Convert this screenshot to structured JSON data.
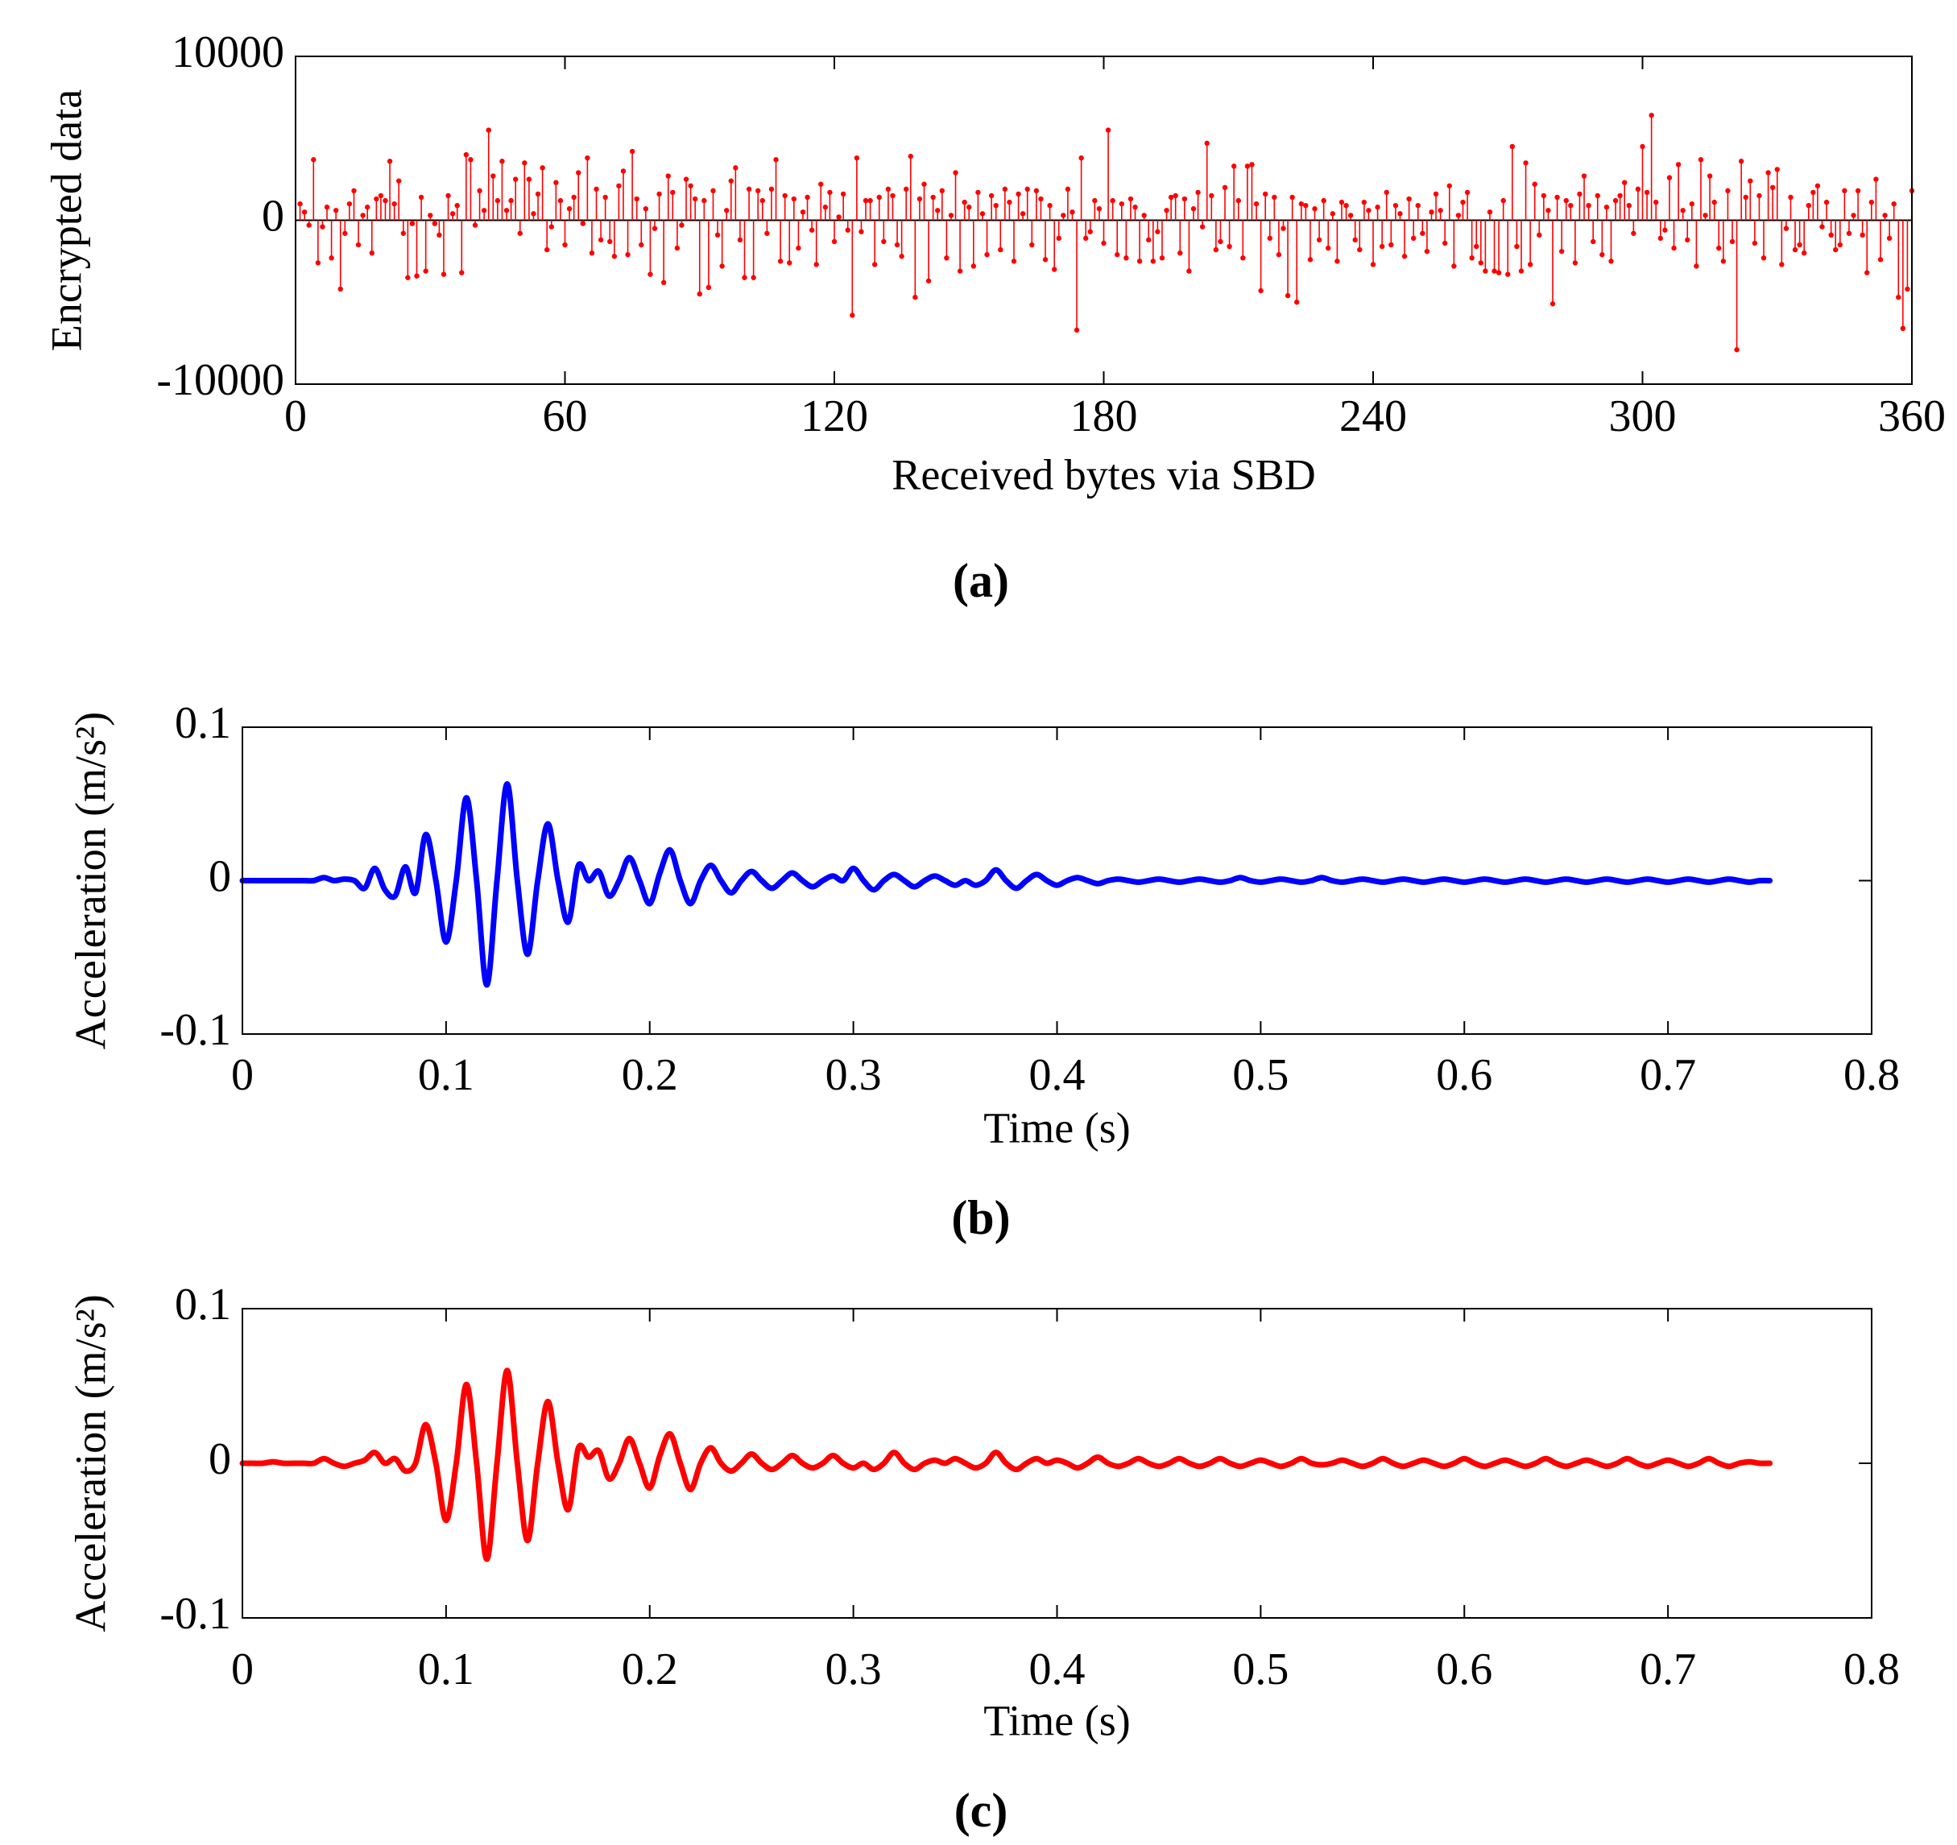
{
  "chart_data": [
    {
      "type": "stem",
      "panel_label": "(a)",
      "x_label": "Received bytes via SBD",
      "y_label": "Encrypted data",
      "color": "#ff0000",
      "xlim": [
        0,
        360
      ],
      "xticks": [
        0,
        60,
        120,
        180,
        240,
        300,
        360
      ],
      "ylim": [
        -10000,
        10000
      ],
      "yticks": [
        -10000,
        0,
        10000
      ],
      "x": [
        1,
        2,
        3,
        4,
        5,
        6,
        7,
        8,
        9,
        10,
        11,
        12,
        13,
        14,
        15,
        16,
        17,
        18,
        19,
        20,
        21,
        22,
        23,
        24,
        25,
        26,
        27,
        28,
        29,
        30,
        31,
        32,
        33,
        34,
        35,
        36,
        37,
        38,
        39,
        40,
        41,
        42,
        43,
        44,
        45,
        46,
        47,
        48,
        49,
        50,
        51,
        52,
        53,
        54,
        55,
        56,
        57,
        58,
        59,
        60,
        61,
        62,
        63,
        64,
        65,
        66,
        67,
        68,
        69,
        70,
        71,
        72,
        73,
        74,
        75,
        76,
        77,
        78,
        79,
        80,
        81,
        82,
        83,
        84,
        85,
        86,
        87,
        88,
        89,
        90,
        91,
        92,
        93,
        94,
        95,
        96,
        97,
        98,
        99,
        100,
        101,
        102,
        103,
        104,
        105,
        106,
        107,
        108,
        109,
        110,
        111,
        112,
        113,
        114,
        115,
        116,
        117,
        118,
        119,
        120,
        121,
        122,
        123,
        124,
        125,
        126,
        127,
        128,
        129,
        130,
        131,
        132,
        133,
        134,
        135,
        136,
        137,
        138,
        139,
        140,
        141,
        142,
        143,
        144,
        145,
        146,
        147,
        148,
        149,
        150,
        151,
        152,
        153,
        154,
        155,
        156,
        157,
        158,
        159,
        160,
        161,
        162,
        163,
        164,
        165,
        166,
        167,
        168,
        169,
        170,
        171,
        172,
        173,
        174,
        175,
        176,
        177,
        178,
        179,
        180,
        181,
        182,
        183,
        184,
        185,
        186,
        187,
        188,
        189,
        190,
        191,
        192,
        193,
        194,
        195,
        196,
        197,
        198,
        199,
        200,
        201,
        202,
        203,
        204,
        205,
        206,
        207,
        208,
        209,
        210,
        211,
        212,
        213,
        214,
        215,
        216,
        217,
        218,
        219,
        220,
        221,
        222,
        223,
        224,
        225,
        226,
        227,
        228,
        229,
        230,
        231,
        232,
        233,
        234,
        235,
        236,
        237,
        238,
        239,
        240,
        241,
        242,
        243,
        244,
        245,
        246,
        247,
        248,
        249,
        250,
        251,
        252,
        253,
        254,
        255,
        256,
        257,
        258,
        259,
        260,
        261,
        262,
        263,
        264,
        265,
        266,
        267,
        268,
        269,
        270,
        271,
        272,
        273,
        274,
        275,
        276,
        277,
        278,
        279,
        280,
        281,
        282,
        283,
        284,
        285,
        286,
        287,
        288,
        289,
        290,
        291,
        292,
        293,
        294,
        295,
        296,
        297,
        298,
        299,
        300,
        301,
        302,
        303,
        304,
        305,
        306,
        307,
        308,
        309,
        310,
        311,
        312,
        313,
        314,
        315,
        316,
        317,
        318,
        319,
        320,
        321,
        322,
        323,
        324,
        325,
        326,
        327,
        328,
        329,
        330,
        331,
        332,
        333,
        334,
        335,
        336,
        337,
        338,
        339,
        340,
        341,
        342,
        343,
        344,
        345,
        346,
        347,
        348,
        349,
        350,
        351,
        352,
        353,
        354,
        355,
        356,
        357,
        358,
        359,
        360
      ],
      "values": [
        1000,
        500,
        -300,
        3700,
        -2600,
        -400,
        800,
        -2300,
        600,
        -4200,
        -800,
        1000,
        1800,
        -1500,
        300,
        800,
        -2000,
        1300,
        1500,
        1200,
        3600,
        1000,
        2400,
        -800,
        -3500,
        -200,
        -3400,
        1400,
        -3100,
        300,
        -200,
        -900,
        -3300,
        1500,
        400,
        900,
        -3200,
        4000,
        3700,
        -300,
        1800,
        600,
        5500,
        2700,
        1200,
        3600,
        600,
        1200,
        2500,
        -800,
        3500,
        2500,
        400,
        1600,
        3200,
        -1800,
        -400,
        2300,
        1200,
        -1500,
        700,
        1400,
        2900,
        -200,
        3800,
        -2000,
        1900,
        -1200,
        1400,
        -1300,
        -2200,
        2100,
        3000,
        -2100,
        4200,
        1300,
        -1500,
        700,
        -3300,
        -500,
        1600,
        -3800,
        2700,
        1700,
        -1700,
        -300,
        2500,
        2100,
        1300,
        -4500,
        1200,
        -4100,
        1800,
        -900,
        -2800,
        600,
        2400,
        3200,
        -1200,
        -3500,
        1900,
        -3500,
        1800,
        1200,
        -800,
        1900,
        3700,
        -2500,
        1500,
        -2600,
        1300,
        -1700,
        500,
        1400,
        -600,
        -2700,
        2200,
        800,
        1700,
        -1300,
        200,
        1600,
        -600,
        -5800,
        3800,
        -700,
        1200,
        1200,
        -2700,
        1400,
        -1300,
        1900,
        1500,
        -1500,
        -2200,
        1900,
        3900,
        -4700,
        1300,
        2200,
        -3700,
        1400,
        600,
        1800,
        -2300,
        300,
        2900,
        -3100,
        1100,
        800,
        -2800,
        1700,
        400,
        -2100,
        1500,
        900,
        -1800,
        1900,
        1100,
        -2500,
        1600,
        400,
        1900,
        -1500,
        1800,
        1300,
        -2400,
        900,
        -3000,
        -1100,
        300,
        1900,
        500,
        -6700,
        3800,
        -1100,
        -700,
        1200,
        700,
        -1400,
        5500,
        1200,
        -2100,
        1000,
        -2300,
        1300,
        800,
        -2500,
        300,
        -1200,
        -2500,
        -700,
        -2300,
        600,
        1400,
        1500,
        -2000,
        1300,
        -3100,
        700,
        1700,
        -400,
        4700,
        1500,
        -1800,
        -1300,
        2000,
        -1600,
        3300,
        1200,
        -2300,
        3300,
        3400,
        1000,
        -4300,
        1600,
        -1100,
        1400,
        -2100,
        -500,
        -4600,
        1400,
        -5000,
        1000,
        900,
        -2400,
        700,
        -1200,
        1200,
        -1700,
        400,
        -2500,
        1100,
        900,
        300,
        -1200,
        -1800,
        1100,
        600,
        -2700,
        800,
        -1600,
        1700,
        -1500,
        900,
        400,
        -2200,
        1300,
        -1100,
        900,
        -800,
        -1900,
        500,
        1600,
        600,
        -1400,
        2100,
        -2800,
        300,
        1100,
        1700,
        -2300,
        -1600,
        -2600,
        -3100,
        500,
        -3100,
        -3200,
        1200,
        -3300,
        4500,
        -1600,
        -3100,
        3500,
        -2700,
        2200,
        -900,
        1500,
        600,
        -5100,
        1400,
        -1900,
        1200,
        900,
        -2600,
        1600,
        2700,
        900,
        -1300,
        1500,
        -2100,
        800,
        -2500,
        1200,
        1500,
        2300,
        900,
        -800,
        1900,
        4500,
        1700,
        6400,
        1100,
        -1100,
        -600,
        2600,
        -1700,
        3400,
        600,
        -1200,
        1000,
        -2800,
        3700,
        300,
        2700,
        1100,
        -1700,
        -2500,
        1800,
        -1300,
        -7900,
        3600,
        1400,
        2400,
        -1400,
        1500,
        -2300,
        2900,
        2000,
        3100,
        -2700,
        -500,
        1400,
        -1800,
        -1500,
        -2000,
        900,
        1700,
        2100,
        -400,
        1100,
        -900,
        -1800,
        -1500,
        1800,
        -800,
        300,
        1800,
        -900,
        -3200,
        1100,
        2500,
        -2400,
        300,
        -1100,
        1000,
        -4700,
        -6600,
        -4200,
        1800
      ]
    },
    {
      "type": "line",
      "panel_label": "(b)",
      "x_label": "Time (s)",
      "y_label": "Acceleration (m/s²)",
      "color": "#0000ff",
      "xlim": [
        0,
        0.8
      ],
      "xticks": [
        0,
        0.1,
        0.2,
        0.3,
        0.4,
        0.5,
        0.6,
        0.7,
        0.8
      ],
      "ylim": [
        -0.1,
        0.1
      ],
      "yticks": [
        -0.1,
        0,
        0.1
      ],
      "x": [
        0,
        0.005,
        0.01,
        0.015,
        0.02,
        0.025,
        0.03,
        0.035,
        0.04,
        0.045,
        0.05,
        0.055,
        0.06,
        0.065,
        0.07,
        0.075,
        0.08,
        0.085,
        0.09,
        0.095,
        0.1,
        0.105,
        0.11,
        0.115,
        0.12,
        0.125,
        0.13,
        0.135,
        0.14,
        0.145,
        0.15,
        0.155,
        0.16,
        0.165,
        0.17,
        0.175,
        0.18,
        0.185,
        0.19,
        0.195,
        0.2,
        0.205,
        0.21,
        0.215,
        0.22,
        0.225,
        0.23,
        0.235,
        0.24,
        0.245,
        0.25,
        0.255,
        0.26,
        0.265,
        0.27,
        0.275,
        0.28,
        0.285,
        0.29,
        0.295,
        0.3,
        0.305,
        0.31,
        0.315,
        0.32,
        0.325,
        0.33,
        0.335,
        0.34,
        0.345,
        0.35,
        0.355,
        0.36,
        0.365,
        0.37,
        0.375,
        0.38,
        0.385,
        0.39,
        0.395,
        0.4,
        0.405,
        0.41,
        0.415,
        0.42,
        0.425,
        0.43,
        0.435,
        0.44,
        0.445,
        0.45,
        0.455,
        0.46,
        0.465,
        0.47,
        0.475,
        0.48,
        0.485,
        0.49,
        0.495,
        0.5,
        0.505,
        0.51,
        0.515,
        0.52,
        0.525,
        0.53,
        0.535,
        0.54,
        0.545,
        0.55,
        0.555,
        0.56,
        0.565,
        0.57,
        0.575,
        0.58,
        0.585,
        0.59,
        0.595,
        0.6,
        0.605,
        0.61,
        0.615,
        0.62,
        0.625,
        0.63,
        0.635,
        0.64,
        0.645,
        0.65,
        0.655,
        0.66,
        0.665,
        0.67,
        0.675,
        0.68,
        0.685,
        0.69,
        0.695,
        0.7,
        0.705,
        0.71,
        0.715,
        0.72,
        0.725,
        0.73,
        0.735,
        0.74,
        0.745,
        0.75
      ],
      "values": [
        0,
        0,
        0,
        0,
        0,
        0,
        0,
        0,
        0.002,
        0,
        0.001,
        0,
        -0.005,
        0.008,
        -0.006,
        -0.01,
        0.009,
        -0.008,
        0.03,
        0,
        -0.04,
        0,
        0.054,
        0,
        -0.068,
        0,
        0.063,
        0,
        -0.048,
        0,
        0.037,
        0,
        -0.027,
        0.01,
        0,
        0.006,
        -0.01,
        0,
        0.015,
        0,
        -0.015,
        0.005,
        0.02,
        0,
        -0.015,
        0,
        0.01,
        0,
        -0.008,
        0,
        0.006,
        0,
        -0.005,
        0,
        0.005,
        0,
        -0.004,
        0,
        0.003,
        0,
        0.008,
        0,
        -0.006,
        0,
        0.004,
        0,
        -0.004,
        0,
        0.003,
        0,
        -0.003,
        0,
        -0.003,
        0,
        0.007,
        0,
        -0.005,
        0,
        0.004,
        0,
        -0.003,
        0,
        0.002,
        0,
        -0.002,
        0,
        0.001,
        0,
        -0.001,
        0,
        0.001,
        0,
        -0.001,
        0,
        0.001,
        0,
        -0.001,
        0,
        0.002,
        0,
        -0.001,
        0,
        0.001,
        0,
        -0.001,
        0,
        0.002,
        0,
        -0.001,
        0,
        0.001,
        0,
        -0.001,
        0,
        0.001,
        0,
        -0.001,
        0,
        0.001,
        0,
        -0.001,
        0,
        0.001,
        0,
        -0.001,
        0,
        0.001,
        0,
        -0.001,
        0,
        0.001,
        0,
        -0.001,
        0,
        0.001,
        0,
        -0.001,
        0,
        0.001,
        0,
        -0.001,
        0,
        0.001,
        0,
        -0.001,
        0,
        0.001,
        0,
        -0.001,
        0,
        0
      ]
    },
    {
      "type": "line",
      "panel_label": "(c)",
      "x_label": "Time (s)",
      "y_label": "Acceleration (m/s²)",
      "color": "#ff0000",
      "xlim": [
        0,
        0.8
      ],
      "xticks": [
        0,
        0.1,
        0.2,
        0.3,
        0.4,
        0.5,
        0.6,
        0.7,
        0.8
      ],
      "ylim": [
        -0.1,
        0.1
      ],
      "yticks": [
        -0.1,
        0,
        0.1
      ],
      "x": [
        0,
        0.005,
        0.01,
        0.015,
        0.02,
        0.025,
        0.03,
        0.035,
        0.04,
        0.045,
        0.05,
        0.055,
        0.06,
        0.065,
        0.07,
        0.075,
        0.08,
        0.085,
        0.09,
        0.095,
        0.1,
        0.105,
        0.11,
        0.115,
        0.12,
        0.125,
        0.13,
        0.135,
        0.14,
        0.145,
        0.15,
        0.155,
        0.16,
        0.165,
        0.17,
        0.175,
        0.18,
        0.185,
        0.19,
        0.195,
        0.2,
        0.205,
        0.21,
        0.215,
        0.22,
        0.225,
        0.23,
        0.235,
        0.24,
        0.245,
        0.25,
        0.255,
        0.26,
        0.265,
        0.27,
        0.275,
        0.28,
        0.285,
        0.29,
        0.295,
        0.3,
        0.305,
        0.31,
        0.315,
        0.32,
        0.325,
        0.33,
        0.335,
        0.34,
        0.345,
        0.35,
        0.355,
        0.36,
        0.365,
        0.37,
        0.375,
        0.38,
        0.385,
        0.39,
        0.395,
        0.4,
        0.405,
        0.41,
        0.415,
        0.42,
        0.425,
        0.43,
        0.435,
        0.44,
        0.445,
        0.45,
        0.455,
        0.46,
        0.465,
        0.47,
        0.475,
        0.48,
        0.485,
        0.49,
        0.495,
        0.5,
        0.505,
        0.51,
        0.515,
        0.52,
        0.525,
        0.53,
        0.535,
        0.54,
        0.545,
        0.55,
        0.555,
        0.56,
        0.565,
        0.57,
        0.575,
        0.58,
        0.585,
        0.59,
        0.595,
        0.6,
        0.605,
        0.61,
        0.615,
        0.62,
        0.625,
        0.63,
        0.635,
        0.64,
        0.645,
        0.65,
        0.655,
        0.66,
        0.665,
        0.67,
        0.675,
        0.68,
        0.685,
        0.69,
        0.695,
        0.7,
        0.705,
        0.71,
        0.715,
        0.72,
        0.725,
        0.73,
        0.735,
        0.74,
        0.745,
        0.75
      ],
      "values": [
        0,
        0,
        0,
        0.001,
        0,
        0,
        0,
        0,
        0.003,
        0,
        -0.002,
        0,
        0.002,
        0.007,
        0,
        0.003,
        -0.005,
        0,
        0.025,
        0,
        -0.037,
        0,
        0.051,
        0,
        -0.062,
        0,
        0.06,
        0,
        -0.05,
        0,
        0.04,
        0,
        -0.03,
        0.01,
        0.004,
        0.008,
        -0.01,
        0,
        0.016,
        0,
        -0.016,
        0.005,
        0.019,
        0,
        -0.017,
        0,
        0.01,
        0,
        -0.005,
        0,
        0.006,
        0,
        -0.004,
        0,
        0.005,
        0,
        -0.003,
        0,
        0.005,
        0,
        -0.003,
        0,
        -0.004,
        0,
        0.007,
        0,
        -0.004,
        0,
        0.002,
        0,
        0.003,
        0,
        -0.003,
        0,
        0.007,
        0,
        -0.004,
        0,
        0.003,
        0,
        0.002,
        0,
        -0.003,
        0,
        0.004,
        0,
        -0.002,
        0,
        0.003,
        0,
        -0.002,
        0,
        0.003,
        0,
        -0.002,
        0,
        0.003,
        0,
        -0.002,
        0,
        0.002,
        0,
        -0.002,
        0,
        0.003,
        0,
        -0.001,
        0,
        0.002,
        0,
        -0.002,
        0,
        0.003,
        0,
        -0.002,
        0,
        0.002,
        0,
        -0.002,
        0,
        0.003,
        0,
        -0.002,
        0,
        0.002,
        0,
        -0.002,
        0,
        0.003,
        0,
        -0.002,
        0,
        0.002,
        0,
        -0.002,
        0,
        0.003,
        0,
        -0.002,
        0,
        0.002,
        0,
        -0.002,
        0,
        0.003,
        0,
        -0.002,
        0,
        0.001,
        0,
        0
      ]
    }
  ]
}
